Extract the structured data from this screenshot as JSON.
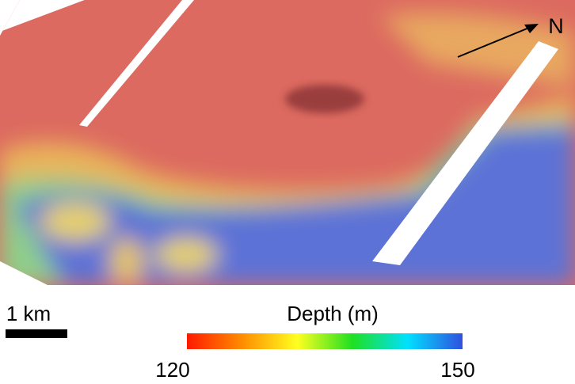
{
  "north_label": "N",
  "scale_bar": {
    "label": "1 km"
  },
  "colorbar": {
    "title": "Depth (m)",
    "min": 120,
    "max": 150,
    "colors": [
      "#ff1a00",
      "#ff8c00",
      "#ffff20",
      "#20e020",
      "#00e0ff",
      "#3050e0"
    ]
  }
}
